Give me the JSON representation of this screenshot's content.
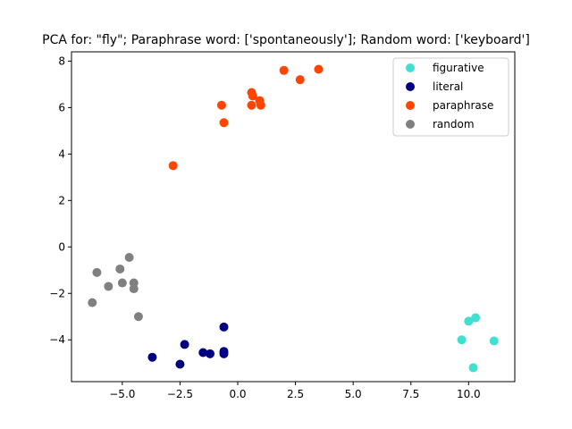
{
  "chart_data": {
    "type": "scatter",
    "title": "PCA for: \"fly\"; Paraphrase word: ['spontaneously']; Random word: ['keyboard']",
    "xlabel": "",
    "ylabel": "",
    "xlim": [
      -7.2,
      12.0
    ],
    "ylim": [
      -5.8,
      8.4
    ],
    "xticks": [
      -5.0,
      -2.5,
      0.0,
      2.5,
      5.0,
      7.5,
      10.0
    ],
    "xtick_labels": [
      "−5.0",
      "−2.5",
      "0.0",
      "2.5",
      "5.0",
      "7.5",
      "10.0"
    ],
    "yticks": [
      -4,
      -2,
      0,
      2,
      4,
      6,
      8
    ],
    "ytick_labels": [
      "−4",
      "−2",
      "0",
      "2",
      "4",
      "6",
      "8"
    ],
    "grid": false,
    "legend_position": "top-right",
    "series": [
      {
        "name": "figurative",
        "color": "#40e0d0",
        "points": [
          [
            10.0,
            -3.2
          ],
          [
            10.3,
            -3.05
          ],
          [
            9.7,
            -4.0
          ],
          [
            11.1,
            -4.05
          ],
          [
            10.2,
            -5.2
          ]
        ]
      },
      {
        "name": "literal",
        "color": "#000080",
        "points": [
          [
            -0.6,
            -3.45
          ],
          [
            -2.3,
            -4.2
          ],
          [
            -1.5,
            -4.55
          ],
          [
            -1.2,
            -4.6
          ],
          [
            -0.6,
            -4.5
          ],
          [
            -0.6,
            -4.6
          ],
          [
            -3.7,
            -4.75
          ],
          [
            -2.5,
            -5.05
          ]
        ]
      },
      {
        "name": "paraphrase",
        "color": "#ff4500",
        "points": [
          [
            3.5,
            7.65
          ],
          [
            2.0,
            7.6
          ],
          [
            2.7,
            7.2
          ],
          [
            0.6,
            6.65
          ],
          [
            0.65,
            6.5
          ],
          [
            0.95,
            6.3
          ],
          [
            1.0,
            6.1
          ],
          [
            0.6,
            6.1
          ],
          [
            -0.7,
            6.1
          ],
          [
            -0.6,
            5.35
          ],
          [
            -2.8,
            3.5
          ]
        ]
      },
      {
        "name": "random",
        "color": "#808080",
        "points": [
          [
            -4.7,
            -0.45
          ],
          [
            -6.1,
            -1.1
          ],
          [
            -5.1,
            -0.95
          ],
          [
            -5.6,
            -1.7
          ],
          [
            -5.0,
            -1.55
          ],
          [
            -4.5,
            -1.55
          ],
          [
            -4.5,
            -1.8
          ],
          [
            -6.3,
            -2.4
          ],
          [
            -4.3,
            -3.0
          ]
        ]
      }
    ]
  }
}
